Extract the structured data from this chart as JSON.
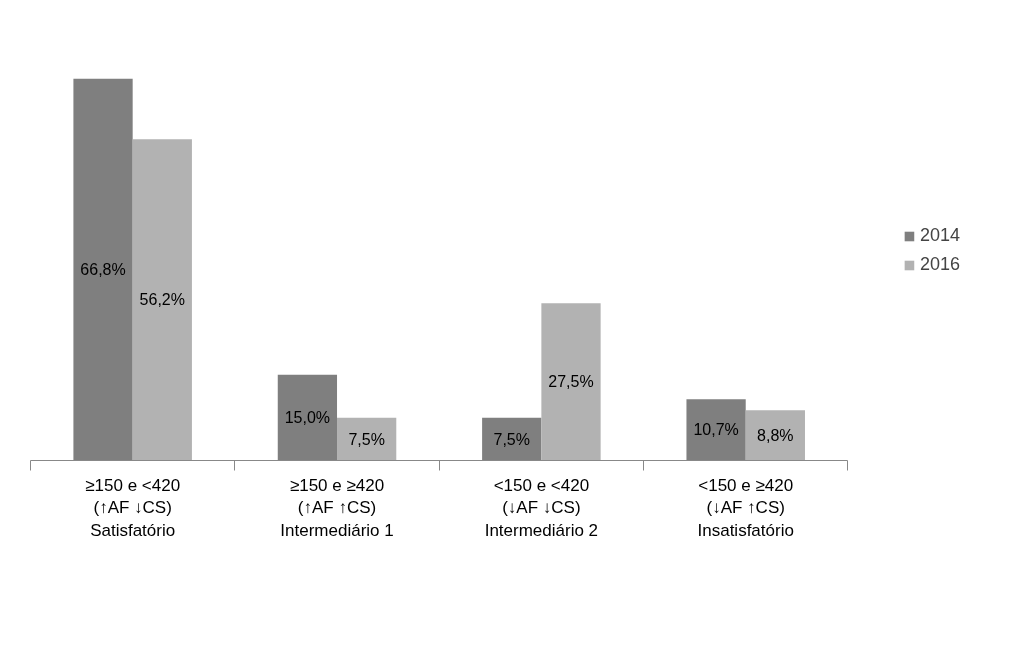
{
  "chart_data": {
    "type": "bar",
    "categories": [
      "≥150 e <420\n(↑AF ↓CS)\nSatisfatório",
      "≥150 e ≥420\n(↑AF ↑CS)\nIntermediário 1",
      "<150 e <420\n(↓AF ↓CS)\nIntermediário 2",
      "<150 e ≥420\n(↓AF ↑CS)\nInsatisfatório"
    ],
    "series": [
      {
        "name": "2014",
        "color": "#7f7f7f",
        "values": [
          66.8,
          15.0,
          7.5,
          10.7
        ],
        "value_labels": [
          "66,8%",
          "15,0%",
          "7,5%",
          "10,7%"
        ]
      },
      {
        "name": "2016",
        "color": "#b2b2b2",
        "values": [
          56.2,
          7.5,
          27.5,
          8.8
        ],
        "value_labels": [
          "56,2%",
          "7,5%",
          "27,5%",
          "8,8%"
        ]
      }
    ],
    "legend": "right",
    "grid": false,
    "tick_labels": "x"
  }
}
